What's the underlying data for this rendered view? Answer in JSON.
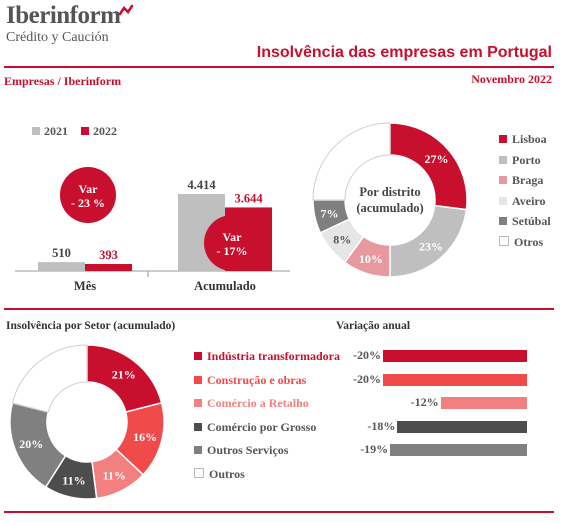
{
  "header": {
    "logo_name": "Iberinform",
    "logo_sub": "Crédito y Caución",
    "title": "Insolvência das empresas em Portugal",
    "subtitle_left": "Empresas / Iberinform",
    "date": "Novembro 2022"
  },
  "colors": {
    "red": "#c8102e",
    "gray": "#bfbfbf",
    "dark_gray": "#555555"
  },
  "chart_data": [
    {
      "type": "bar",
      "legend": [
        "2021",
        "2022"
      ],
      "categories": [
        "Mês",
        "Acumulado"
      ],
      "series": [
        {
          "name": "2021",
          "values": [
            510,
            4414
          ],
          "labels": [
            "510",
            "4.414"
          ],
          "color": "#bfbfbf"
        },
        {
          "name": "2022",
          "values": [
            393,
            3644
          ],
          "labels": [
            "393",
            "3.644"
          ],
          "color": "#c8102e"
        }
      ],
      "annotations": [
        {
          "category": "Mês",
          "text_lines": [
            "Var",
            "- 23 %"
          ]
        },
        {
          "category": "Acumulado",
          "text_lines": [
            "Var",
            "- 17%"
          ]
        }
      ]
    },
    {
      "type": "pie",
      "variant": "donut",
      "center_label": [
        "Por distrito",
        "(acumulado)"
      ],
      "slices": [
        {
          "label": "Lisboa",
          "value": 27,
          "text": "27%",
          "color": "#c8102e"
        },
        {
          "label": "Porto",
          "value": 23,
          "text": "23%",
          "color": "#bfbfbf"
        },
        {
          "label": "Braga",
          "value": 10,
          "text": "10%",
          "color": "#e8999f"
        },
        {
          "label": "Aveiro",
          "value": 8,
          "text": "8%",
          "color": "#e6e6e6"
        },
        {
          "label": "Setúbal",
          "value": 7,
          "text": "7%",
          "color": "#7f7f7f"
        },
        {
          "label": "Otros",
          "value": 25,
          "text": "",
          "color": "#ffffff"
        }
      ],
      "legend_placement": "right"
    },
    {
      "type": "pie",
      "variant": "donut",
      "title": "Insolvência por Setor (acumulado)",
      "slices": [
        {
          "label": "Indústria transformadora",
          "value": 21,
          "text": "21%",
          "color": "#c8102e"
        },
        {
          "label": "Construção e obras",
          "value": 16,
          "text": "16%",
          "color": "#f04a4a"
        },
        {
          "label": "Comércio a Retalho",
          "value": 11,
          "text": "11%",
          "color": "#f28080"
        },
        {
          "label": "Comércio por Grosso",
          "value": 11,
          "text": "11%",
          "color": "#4d4d4d"
        },
        {
          "label": "Outros Serviços",
          "value": 20,
          "text": "20%",
          "color": "#808080"
        },
        {
          "label": "Outros",
          "value": 21,
          "text": "",
          "color": "#ffffff"
        }
      ]
    },
    {
      "type": "bar",
      "orientation": "horizontal",
      "title": "Variação anual",
      "categories": [
        "Indústria transformadora",
        "Construção e obras",
        "Comércio a Retalho",
        "Comércio por Grosso",
        "Outros Serviços"
      ],
      "values": [
        -20,
        -20,
        -12,
        -18,
        -19
      ],
      "labels": [
        "-20%",
        "-20%",
        "-12%",
        "-18%",
        "-19%"
      ],
      "colors": [
        "#c8102e",
        "#f04a4a",
        "#f28080",
        "#4d4d4d",
        "#808080"
      ]
    }
  ]
}
